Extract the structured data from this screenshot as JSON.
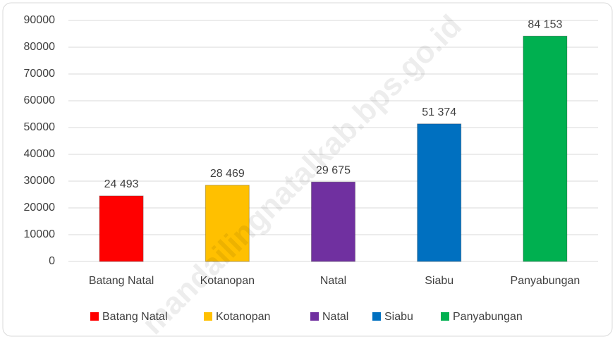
{
  "chart_data": {
    "type": "bar",
    "categories": [
      "Batang Natal",
      "Kotanopan",
      "Natal",
      "Siabu",
      "Panyabungan"
    ],
    "values": [
      24493,
      28469,
      29675,
      51374,
      84153
    ],
    "value_labels": [
      "24 493",
      "28 469",
      "29 675",
      "51 374",
      "84 153"
    ],
    "colors": [
      "#ff0000",
      "#ffc000",
      "#7030a0",
      "#0070c0",
      "#00b050"
    ],
    "ylim": [
      0,
      90000
    ],
    "yticks": [
      0,
      10000,
      20000,
      30000,
      40000,
      50000,
      60000,
      70000,
      80000,
      90000
    ],
    "grid": true,
    "legend": "bottom",
    "watermark": "mandailingnatalkab.bps.go.id"
  }
}
